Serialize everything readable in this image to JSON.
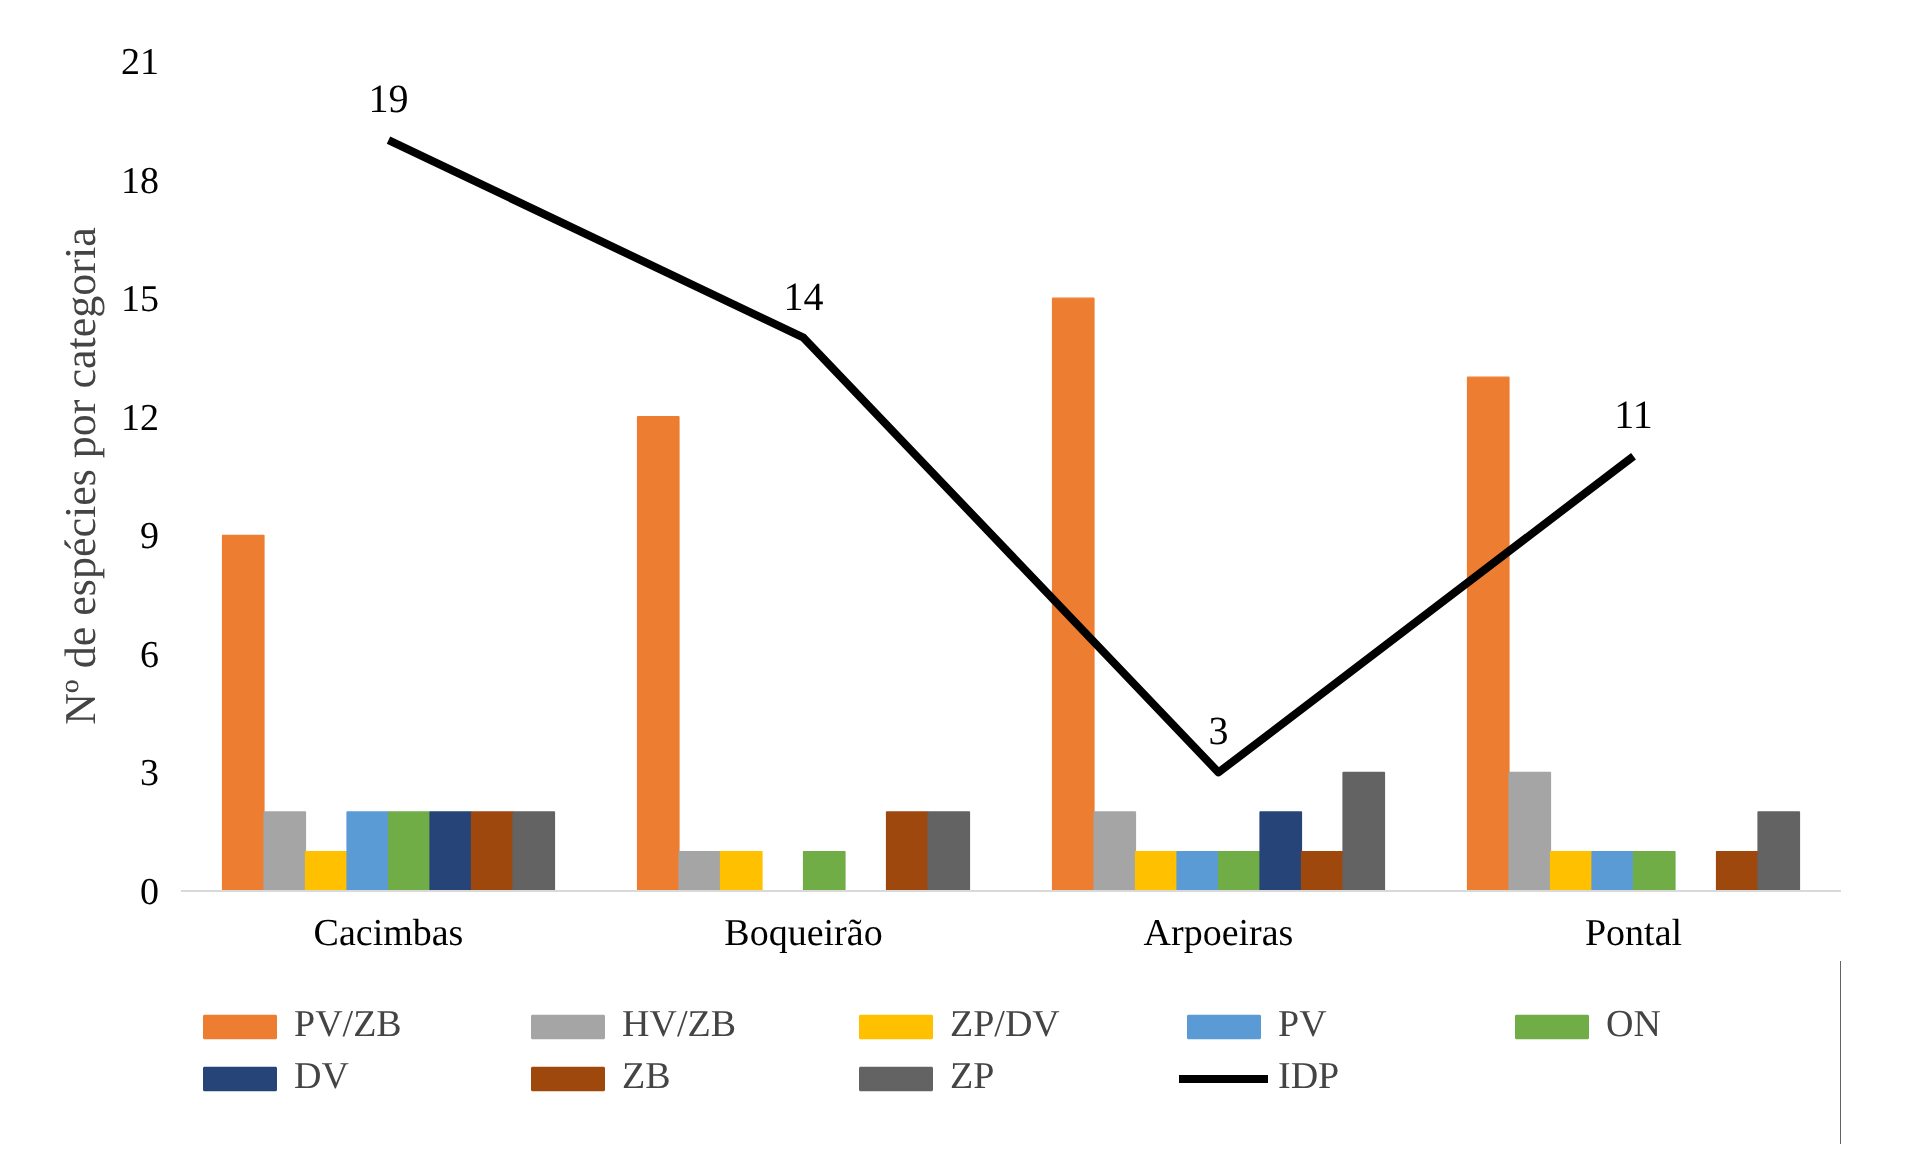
{
  "chart_data": {
    "type": "bar",
    "ylabel": "Nº de espécies por categoria",
    "categories": [
      "Cacimbas",
      "Boqueirão",
      "Arpoeiras",
      "Pontal"
    ],
    "ylim": [
      0,
      21
    ],
    "yticks": [
      0,
      3,
      6,
      9,
      12,
      15,
      18,
      21
    ],
    "grid": false,
    "legend": "bottom",
    "series": [
      {
        "name": "PV/ZB",
        "color": "#ed7d31",
        "values": [
          9,
          12,
          15,
          13
        ]
      },
      {
        "name": "HV/ZB",
        "color": "#a5a5a5",
        "values": [
          2,
          1,
          2,
          3
        ]
      },
      {
        "name": "ZP/DV",
        "color": "#ffc000",
        "values": [
          1,
          1,
          1,
          1
        ]
      },
      {
        "name": "PV",
        "color": "#5b9bd5",
        "values": [
          2,
          0,
          1,
          1
        ]
      },
      {
        "name": "ON",
        "color": "#70ad47",
        "values": [
          2,
          1,
          1,
          1
        ]
      },
      {
        "name": "DV",
        "color": "#264478",
        "values": [
          2,
          0,
          2,
          0
        ]
      },
      {
        "name": "ZB",
        "color": "#9e480e",
        "values": [
          2,
          2,
          1,
          1
        ]
      },
      {
        "name": "ZP",
        "color": "#636363",
        "values": [
          2,
          2,
          3,
          2
        ]
      },
      {
        "name": "IDP",
        "color": "#000000",
        "type": "line",
        "values": [
          19,
          14,
          3,
          11
        ],
        "value_labels": [
          "19",
          "14",
          "3",
          "11"
        ]
      }
    ]
  }
}
